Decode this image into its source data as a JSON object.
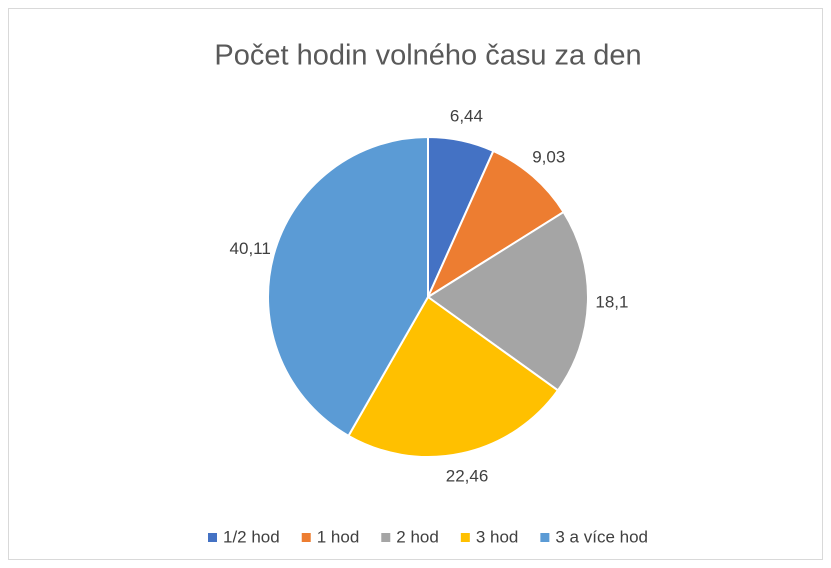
{
  "chart_data": {
    "type": "pie",
    "title": "Počet hodin volného času za den",
    "categories": [
      "1/2 hod",
      "1 hod",
      "2 hod",
      "3 hod",
      "3 a více hod"
    ],
    "values": [
      6.44,
      9.03,
      18.1,
      22.46,
      40.11
    ],
    "value_labels": [
      "6,44",
      "9,03",
      "18,1",
      "22,46",
      "40,11"
    ],
    "colors": [
      "#4472c4",
      "#ed7d31",
      "#a5a5a5",
      "#ffc000",
      "#5b9bd5"
    ],
    "legend": "bottom"
  }
}
